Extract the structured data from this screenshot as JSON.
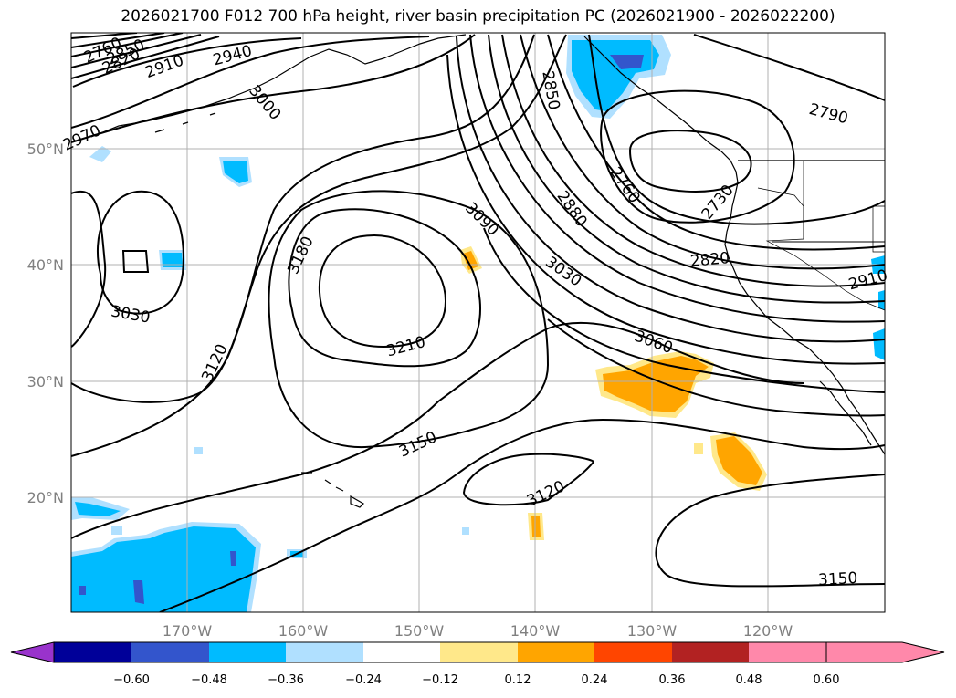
{
  "title": "2026021700 F012 700 hPa height, river basin precipitation PC (2026021900 - 2026022200)",
  "map": {
    "lat_labels": [
      "50°N",
      "40°N",
      "30°N",
      "20°N"
    ],
    "lon_labels": [
      "170°W",
      "160°W",
      "150°W",
      "140°W",
      "130°W",
      "120°W"
    ],
    "contour_labels": [
      {
        "text": "2760"
      },
      {
        "text": "2820"
      },
      {
        "text": "2850"
      },
      {
        "text": "2910"
      },
      {
        "text": "2940"
      },
      {
        "text": "3000"
      },
      {
        "text": "2970"
      },
      {
        "text": "3030"
      },
      {
        "text": "3120"
      },
      {
        "text": "3180"
      },
      {
        "text": "3210"
      },
      {
        "text": "3150"
      },
      {
        "text": "3090"
      },
      {
        "text": "3030"
      },
      {
        "text": "3060"
      },
      {
        "text": "2850"
      },
      {
        "text": "2880"
      },
      {
        "text": "2760"
      },
      {
        "text": "2790"
      },
      {
        "text": "2730"
      },
      {
        "text": "2820"
      },
      {
        "text": "2910"
      },
      {
        "text": "3120"
      },
      {
        "text": "3150"
      }
    ]
  },
  "colorbar": {
    "colors": [
      "#9933cc",
      "#000099",
      "#3355cc",
      "#00bbff",
      "#b0e0ff",
      "#ffffff",
      "#ffe88a",
      "#ffa500",
      "#ff4500",
      "#b22222",
      "#ff88aa"
    ],
    "tick_labels": [
      "−0.60",
      "−0.48",
      "−0.36",
      "−0.24",
      "−0.12",
      "0.12",
      "0.24",
      "0.36",
      "0.48",
      "0.60"
    ]
  }
}
